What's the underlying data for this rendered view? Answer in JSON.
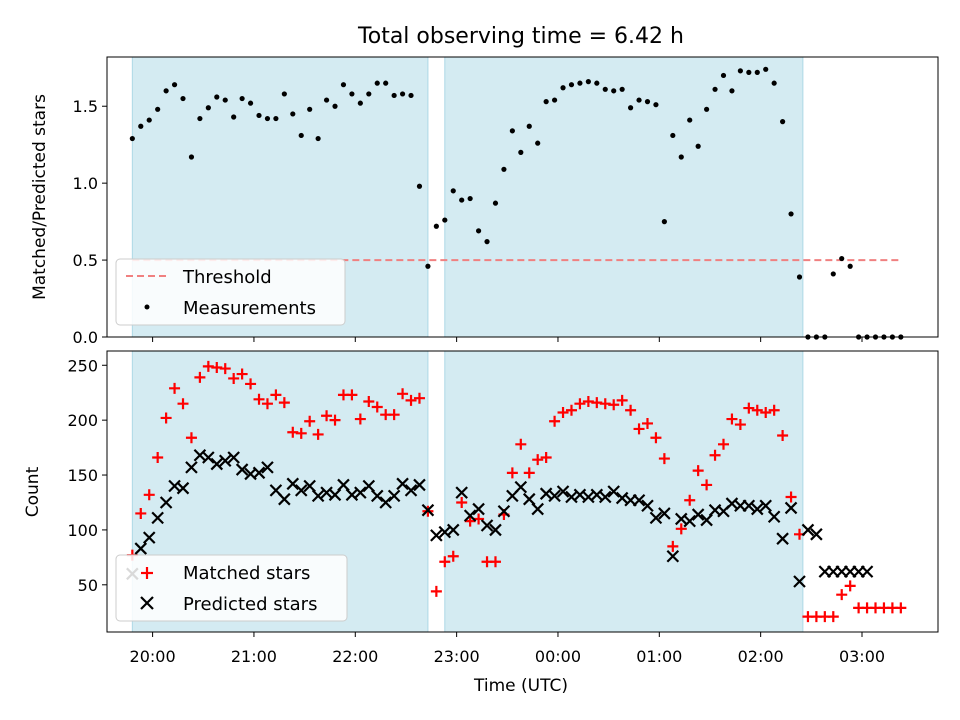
{
  "figure_title": "Total observing time = 6.42 h",
  "chart_data": [
    {
      "type": "scatter",
      "title": "",
      "ylabel": "Matched/Predicted stars",
      "xlabel": "",
      "xlim": [
        "19:33",
        "03:45"
      ],
      "ylim": [
        0,
        1.82
      ],
      "yticks": [
        0.0,
        0.5,
        1.0,
        1.5
      ],
      "xticks": [
        "20:00",
        "21:00",
        "22:00",
        "23:00",
        "00:00",
        "01:00",
        "02:00",
        "03:00"
      ],
      "shaded_intervals": [
        [
          "19:48",
          "22:43"
        ],
        [
          "22:53",
          "02:25"
        ]
      ],
      "threshold": {
        "name": "Threshold",
        "y": 0.5,
        "x_range": [
          "19:48",
          "03:22"
        ],
        "color": "#f08080",
        "style": "dashed"
      },
      "legend_position": "lower-left",
      "series": [
        {
          "name": "Measurements",
          "color": "#000000",
          "marker": "dot",
          "x": [
            "19:48",
            "19:53",
            "19:58",
            "20:03",
            "20:08",
            "20:13",
            "20:18",
            "20:23",
            "20:28",
            "20:33",
            "20:38",
            "20:43",
            "20:48",
            "20:53",
            "20:58",
            "21:03",
            "21:08",
            "21:13",
            "21:18",
            "21:23",
            "21:28",
            "21:33",
            "21:38",
            "21:43",
            "21:48",
            "21:53",
            "21:58",
            "22:03",
            "22:08",
            "22:13",
            "22:18",
            "22:23",
            "22:28",
            "22:33",
            "22:38",
            "22:43",
            "22:48",
            "22:53",
            "22:58",
            "23:03",
            "23:08",
            "23:13",
            "23:18",
            "23:23",
            "23:28",
            "23:33",
            "23:38",
            "23:43",
            "23:48",
            "23:53",
            "23:58",
            "00:03",
            "00:08",
            "00:13",
            "00:18",
            "00:23",
            "00:28",
            "00:33",
            "00:38",
            "00:43",
            "00:48",
            "00:53",
            "00:58",
            "01:03",
            "01:08",
            "01:13",
            "01:18",
            "01:23",
            "01:28",
            "01:33",
            "01:38",
            "01:43",
            "01:48",
            "01:53",
            "01:58",
            "02:03",
            "02:08",
            "02:13",
            "02:18",
            "02:23",
            "02:28",
            "02:33",
            "02:38",
            "02:43",
            "02:48",
            "02:53",
            "02:58",
            "03:03",
            "03:08",
            "03:13",
            "03:18",
            "03:23"
          ],
          "y": [
            1.29,
            1.37,
            1.41,
            1.48,
            1.6,
            1.64,
            1.55,
            1.17,
            1.42,
            1.49,
            1.56,
            1.54,
            1.43,
            1.55,
            1.52,
            1.44,
            1.42,
            1.42,
            1.58,
            1.45,
            1.31,
            1.48,
            1.29,
            1.54,
            1.5,
            1.64,
            1.58,
            1.52,
            1.58,
            1.65,
            1.65,
            1.57,
            1.58,
            1.57,
            0.98,
            0.46,
            0.72,
            0.76,
            0.95,
            0.89,
            0.9,
            0.69,
            0.62,
            0.87,
            1.09,
            1.34,
            1.2,
            1.37,
            1.26,
            1.53,
            1.54,
            1.62,
            1.64,
            1.65,
            1.66,
            1.65,
            1.61,
            1.6,
            1.61,
            1.49,
            1.54,
            1.53,
            1.51,
            0.75,
            1.31,
            1.17,
            1.41,
            1.24,
            1.48,
            1.61,
            1.7,
            1.6,
            1.73,
            1.72,
            1.72,
            1.74,
            1.65,
            1.4,
            0.8,
            0.39,
            0.0,
            0.0,
            0.0,
            0.41,
            0.51,
            0.46,
            0.0,
            0.0,
            0.0,
            0.0,
            0.0,
            0.0
          ]
        }
      ]
    },
    {
      "type": "scatter",
      "title": "",
      "ylabel": "Count",
      "xlabel": "Time (UTC)",
      "xlim": [
        "19:33",
        "03:45"
      ],
      "ylim": [
        7,
        263
      ],
      "yticks": [
        50,
        100,
        150,
        200,
        250
      ],
      "xticks": [
        "20:00",
        "21:00",
        "22:00",
        "23:00",
        "00:00",
        "01:00",
        "02:00",
        "03:00"
      ],
      "shaded_intervals": [
        [
          "19:48",
          "22:43"
        ],
        [
          "22:53",
          "02:25"
        ]
      ],
      "legend_position": "lower-left",
      "series": [
        {
          "name": "Matched stars",
          "color": "#ff0000",
          "marker": "plus",
          "x": [
            "19:48",
            "19:53",
            "19:58",
            "20:03",
            "20:08",
            "20:13",
            "20:18",
            "20:23",
            "20:28",
            "20:33",
            "20:38",
            "20:43",
            "20:48",
            "20:53",
            "20:58",
            "21:03",
            "21:08",
            "21:13",
            "21:18",
            "21:23",
            "21:28",
            "21:33",
            "21:38",
            "21:43",
            "21:48",
            "21:53",
            "21:58",
            "22:03",
            "22:08",
            "22:13",
            "22:18",
            "22:23",
            "22:28",
            "22:33",
            "22:38",
            "22:43",
            "22:48",
            "22:53",
            "22:58",
            "23:03",
            "23:08",
            "23:13",
            "23:18",
            "23:23",
            "23:28",
            "23:33",
            "23:38",
            "23:43",
            "23:48",
            "23:53",
            "23:58",
            "00:03",
            "00:08",
            "00:13",
            "00:18",
            "00:23",
            "00:28",
            "00:33",
            "00:38",
            "00:43",
            "00:48",
            "00:53",
            "00:58",
            "01:03",
            "01:08",
            "01:13",
            "01:18",
            "01:23",
            "01:28",
            "01:33",
            "01:38",
            "01:43",
            "01:48",
            "01:53",
            "01:58",
            "02:03",
            "02:08",
            "02:13",
            "02:18",
            "02:23",
            "02:28",
            "02:33",
            "02:38",
            "02:43",
            "02:48",
            "02:53",
            "02:58",
            "03:03",
            "03:08",
            "03:13",
            "03:18",
            "03:23"
          ],
          "y": [
            77,
            115,
            132,
            166,
            202,
            229,
            215,
            184,
            239,
            249,
            248,
            247,
            238,
            242,
            233,
            219,
            215,
            223,
            216,
            189,
            188,
            199,
            187,
            204,
            200,
            223,
            223,
            201,
            217,
            212,
            205,
            205,
            224,
            218,
            220,
            117,
            44,
            71,
            76,
            125,
            108,
            110,
            71,
            71,
            114,
            152,
            178,
            152,
            164,
            166,
            199,
            207,
            209,
            215,
            217,
            216,
            215,
            214,
            218,
            209,
            192,
            197,
            184,
            165,
            85,
            101,
            127,
            154,
            141,
            168,
            178,
            201,
            196,
            211,
            209,
            207,
            209,
            186,
            130,
            96,
            21,
            21,
            21,
            21,
            41,
            49,
            29,
            29,
            29,
            29,
            29,
            29
          ]
        },
        {
          "name": "Predicted stars",
          "color": "#000000",
          "marker": "x",
          "x": [
            "19:48",
            "19:53",
            "19:58",
            "20:03",
            "20:08",
            "20:13",
            "20:18",
            "20:23",
            "20:28",
            "20:33",
            "20:38",
            "20:43",
            "20:48",
            "20:53",
            "20:58",
            "21:03",
            "21:08",
            "21:13",
            "21:18",
            "21:23",
            "21:28",
            "21:33",
            "21:38",
            "21:43",
            "21:48",
            "21:53",
            "21:58",
            "22:03",
            "22:08",
            "22:13",
            "22:18",
            "22:23",
            "22:28",
            "22:33",
            "22:38",
            "22:43",
            "22:48",
            "22:53",
            "22:58",
            "23:03",
            "23:08",
            "23:13",
            "23:18",
            "23:23",
            "23:28",
            "23:33",
            "23:38",
            "23:43",
            "23:48",
            "23:53",
            "23:58",
            "00:03",
            "00:08",
            "00:13",
            "00:18",
            "00:23",
            "00:28",
            "00:33",
            "00:38",
            "00:43",
            "00:48",
            "00:53",
            "00:58",
            "01:03",
            "01:08",
            "01:13",
            "01:18",
            "01:23",
            "01:28",
            "01:33",
            "01:38",
            "01:43",
            "01:48",
            "01:53",
            "01:58",
            "02:03",
            "02:08",
            "02:13",
            "02:18",
            "02:23",
            "02:28",
            "02:33",
            "02:38",
            "02:43",
            "02:48",
            "02:53",
            "02:58",
            "03:03"
          ],
          "y": [
            60,
            83,
            93,
            111,
            125,
            140,
            138,
            157,
            168,
            166,
            160,
            163,
            166,
            155,
            151,
            152,
            157,
            136,
            128,
            142,
            136,
            140,
            131,
            134,
            132,
            141,
            132,
            134,
            140,
            131,
            125,
            131,
            142,
            136,
            141,
            118,
            95,
            98,
            100,
            134,
            113,
            119,
            104,
            100,
            117,
            131,
            139,
            128,
            119,
            133,
            131,
            135,
            130,
            132,
            130,
            132,
            130,
            135,
            129,
            127,
            127,
            122,
            111,
            115,
            76,
            110,
            108,
            114,
            109,
            118,
            117,
            124,
            122,
            122,
            119,
            122,
            112,
            92,
            120,
            53,
            100,
            96,
            62,
            62,
            62,
            62,
            62,
            62
          ]
        }
      ]
    }
  ]
}
